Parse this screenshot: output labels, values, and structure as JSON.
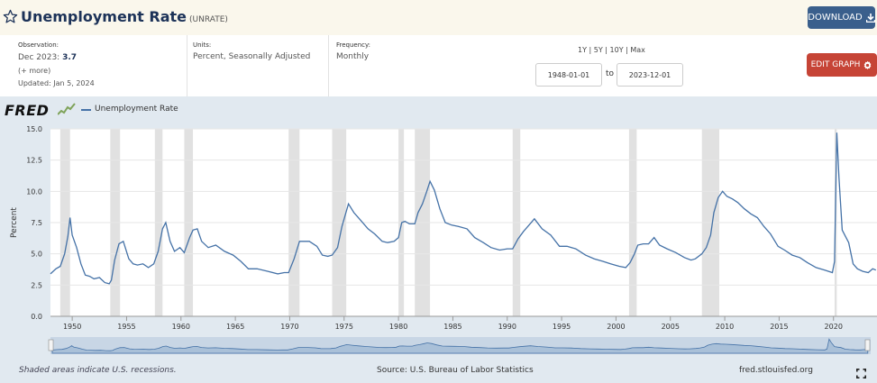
{
  "header": {
    "title": "Unemployment Rate",
    "series_id": "(UNRATE)",
    "download_label": "DOWNLOAD",
    "download_icon": "download-icon",
    "star_icon": "star-icon"
  },
  "info": {
    "observation_label": "Observation:",
    "observation_date": "Dec 2023:",
    "observation_value": "3.7",
    "more_label": "(+ more)",
    "updated": "Updated: Jan 5, 2024",
    "units_label": "Units:",
    "units_value": "Percent, Seasonally Adjusted",
    "frequency_label": "Frequency:",
    "frequency_value": "Monthly",
    "ranges": "1Y | 5Y | 10Y | Max",
    "date_from": "1948-01-01",
    "date_sep": "to",
    "date_to": "2023-12-01",
    "edit_label": "EDIT GRAPH",
    "edit_icon": "gear-icon"
  },
  "logo": "FRED",
  "footer": {
    "note": "Shaded areas indicate U.S. recessions.",
    "source": "Source: U.S. Bureau of Labor Statistics",
    "site": "fred.stlouisfed.org"
  },
  "colors": {
    "series": "#4572a7",
    "recession": "#e1e1e1",
    "background": "#e1e9f0",
    "edit_button": "#c64436",
    "download_button": "#3a5f8c"
  },
  "chart_data": {
    "type": "line",
    "title": "",
    "ylabel": "Percent",
    "xlabel": "",
    "ylim": [
      0,
      15
    ],
    "xlim": [
      1948,
      2024
    ],
    "yticks": [
      "0.0",
      "2.5",
      "5.0",
      "7.5",
      "10.0",
      "12.5",
      "15.0"
    ],
    "xticks": [
      "1950",
      "1955",
      "1960",
      "1965",
      "1970",
      "1975",
      "1980",
      "1985",
      "1990",
      "1995",
      "2000",
      "2005",
      "2010",
      "2015",
      "2020"
    ],
    "legend": "top-left",
    "grid": true,
    "series": [
      {
        "name": "Unemployment Rate",
        "x": [
          1948.0,
          1948.5,
          1948.9,
          1949.3,
          1949.6,
          1949.8,
          1950.0,
          1950.4,
          1950.8,
          1951.2,
          1951.6,
          1952.0,
          1952.5,
          1953.0,
          1953.4,
          1953.6,
          1953.9,
          1954.3,
          1954.7,
          1955.2,
          1955.6,
          1956.0,
          1956.5,
          1957.0,
          1957.5,
          1957.9,
          1958.3,
          1958.6,
          1959.0,
          1959.4,
          1959.9,
          1960.3,
          1960.8,
          1961.1,
          1961.5,
          1961.9,
          1962.5,
          1963.2,
          1964.0,
          1964.8,
          1965.5,
          1966.2,
          1967.0,
          1968.0,
          1968.9,
          1969.5,
          1969.9,
          1970.4,
          1970.9,
          1971.3,
          1971.8,
          1972.5,
          1973.0,
          1973.5,
          1973.9,
          1974.4,
          1974.8,
          1975.1,
          1975.4,
          1975.9,
          1976.5,
          1977.2,
          1977.8,
          1978.5,
          1979.0,
          1979.6,
          1980.0,
          1980.3,
          1980.6,
          1981.0,
          1981.5,
          1981.8,
          1982.2,
          1982.6,
          1982.9,
          1983.3,
          1983.8,
          1984.3,
          1984.9,
          1985.5,
          1986.3,
          1987.0,
          1987.8,
          1988.5,
          1989.3,
          1990.0,
          1990.5,
          1991.0,
          1991.5,
          1992.0,
          1992.5,
          1993.2,
          1994.0,
          1994.8,
          1995.5,
          1996.3,
          1997.2,
          1998.0,
          1998.8,
          1999.5,
          2000.3,
          2000.9,
          2001.3,
          2001.7,
          2002.0,
          2002.5,
          2003.0,
          2003.5,
          2004.0,
          2004.7,
          2005.5,
          2006.3,
          2006.9,
          2007.3,
          2007.9,
          2008.3,
          2008.7,
          2009.0,
          2009.4,
          2009.8,
          2010.2,
          2010.7,
          2011.2,
          2011.8,
          2012.4,
          2013.0,
          2013.6,
          2014.2,
          2014.9,
          2015.5,
          2016.2,
          2016.9,
          2017.6,
          2018.4,
          2019.2,
          2019.9,
          2020.1,
          2020.3,
          2020.5,
          2020.8,
          2021.1,
          2021.4,
          2021.8,
          2022.2,
          2022.7,
          2023.2,
          2023.6,
          2023.9
        ],
        "values": [
          3.4,
          3.8,
          4.0,
          5.0,
          6.4,
          7.9,
          6.5,
          5.5,
          4.2,
          3.3,
          3.2,
          3.0,
          3.1,
          2.7,
          2.6,
          2.9,
          4.5,
          5.8,
          6.0,
          4.6,
          4.2,
          4.1,
          4.2,
          3.9,
          4.2,
          5.2,
          7.0,
          7.5,
          6.0,
          5.2,
          5.5,
          5.1,
          6.3,
          6.9,
          7.0,
          6.0,
          5.5,
          5.7,
          5.2,
          4.9,
          4.4,
          3.8,
          3.8,
          3.6,
          3.4,
          3.5,
          3.5,
          4.6,
          6.0,
          6.0,
          6.0,
          5.6,
          4.9,
          4.8,
          4.9,
          5.5,
          7.2,
          8.1,
          9.0,
          8.3,
          7.7,
          7.0,
          6.6,
          6.0,
          5.9,
          6.0,
          6.3,
          7.5,
          7.6,
          7.4,
          7.4,
          8.3,
          9.0,
          10.0,
          10.8,
          10.1,
          8.6,
          7.5,
          7.3,
          7.2,
          7.0,
          6.3,
          5.9,
          5.5,
          5.3,
          5.4,
          5.4,
          6.2,
          6.8,
          7.3,
          7.8,
          7.0,
          6.5,
          5.6,
          5.6,
          5.4,
          4.9,
          4.6,
          4.4,
          4.2,
          4.0,
          3.9,
          4.3,
          5.0,
          5.7,
          5.8,
          5.8,
          6.3,
          5.7,
          5.4,
          5.1,
          4.7,
          4.5,
          4.6,
          5.0,
          5.5,
          6.5,
          8.3,
          9.5,
          10.0,
          9.6,
          9.4,
          9.1,
          8.6,
          8.2,
          7.9,
          7.2,
          6.6,
          5.6,
          5.3,
          4.9,
          4.7,
          4.3,
          3.9,
          3.7,
          3.5,
          4.4,
          14.7,
          11.1,
          6.9,
          6.4,
          5.9,
          4.2,
          3.8,
          3.6,
          3.5,
          3.8,
          3.7
        ]
      }
    ],
    "recessions": [
      [
        1948.9,
        1949.8
      ],
      [
        1953.5,
        1954.4
      ],
      [
        1957.6,
        1958.3
      ],
      [
        1960.3,
        1961.1
      ],
      [
        1969.9,
        1970.9
      ],
      [
        1973.9,
        1975.2
      ],
      [
        1980.0,
        1980.5
      ],
      [
        1981.5,
        1982.9
      ],
      [
        1990.5,
        1991.2
      ],
      [
        2001.2,
        2001.9
      ],
      [
        2007.9,
        2009.5
      ],
      [
        2020.1,
        2020.3
      ]
    ]
  }
}
